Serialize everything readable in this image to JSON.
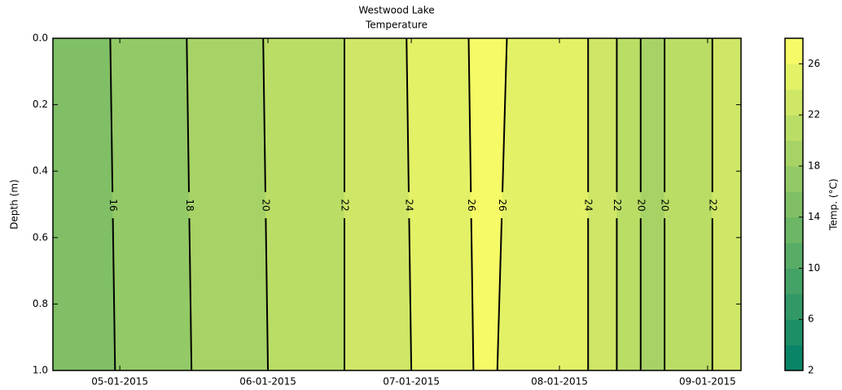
{
  "chart_data": {
    "type": "contour",
    "title": "Westwood Lake",
    "subtitle": "Temperature",
    "ylabel": "Depth (m)",
    "colorbar_label": "Temp. (°C)",
    "xlim": [
      "2015-04-17",
      "2015-09-08"
    ],
    "xticks": [
      {
        "value": "2015-05-01",
        "label": "05-01-2015"
      },
      {
        "value": "2015-06-01",
        "label": "06-01-2015"
      },
      {
        "value": "2015-07-01",
        "label": "07-01-2015"
      },
      {
        "value": "2015-08-01",
        "label": "08-01-2015"
      },
      {
        "value": "2015-09-01",
        "label": "09-01-2015"
      }
    ],
    "ylim": [
      0,
      1
    ],
    "y_inverted": true,
    "yticks": [
      {
        "value": 0,
        "label": "0.0"
      },
      0.2,
      0.4,
      0.6,
      0.8,
      {
        "value": 1,
        "label": "1.0"
      }
    ],
    "contours": [
      {
        "level": 16,
        "x_top": "2015-04-29",
        "x_bottom": "2015-04-30"
      },
      {
        "level": 18,
        "x_top": "2015-05-15",
        "x_bottom": "2015-05-16"
      },
      {
        "level": 20,
        "x_top": "2015-05-31",
        "x_bottom": "2015-06-01"
      },
      {
        "level": 22,
        "x_top": "2015-06-17",
        "x_bottom": "2015-06-17"
      },
      {
        "level": 24,
        "x_top": "2015-06-30",
        "x_bottom": "2015-07-01"
      },
      {
        "level": 26,
        "x_top": "2015-07-13",
        "x_bottom": "2015-07-14"
      },
      {
        "level": 26,
        "x_top": "2015-07-21",
        "x_bottom": "2015-07-19"
      },
      {
        "level": 24,
        "x_top": "2015-08-07",
        "x_bottom": "2015-08-07"
      },
      {
        "level": 22,
        "x_top": "2015-08-13",
        "x_bottom": "2015-08-13"
      },
      {
        "level": 20,
        "x_top": "2015-08-18",
        "x_bottom": "2015-08-18"
      },
      {
        "level": 20,
        "x_top": "2015-08-23",
        "x_bottom": "2015-08-23"
      },
      {
        "level": 22,
        "x_top": "2015-09-02",
        "x_bottom": "2015-09-02"
      }
    ],
    "region_colors": [
      "#80bf66",
      "#93c966",
      "#a7d366",
      "#badd66",
      "#cee766",
      "#e2f166",
      "#f5fa66",
      "#e2f166",
      "#cee766",
      "#badd66",
      "#a7d366",
      "#badd66",
      "#cee766"
    ],
    "colorbar_levels": [
      2,
      4,
      6,
      8,
      10,
      12,
      14,
      16,
      18,
      20,
      22,
      24,
      26,
      28
    ],
    "colorbar_colors": [
      "#0a8466",
      "#1d8e66",
      "#319866",
      "#45a266",
      "#58ac66",
      "#6cb666",
      "#80bf66",
      "#93c966",
      "#a7d366",
      "#badd66",
      "#cee766",
      "#e2f166",
      "#f5fa66"
    ],
    "colorbar_lim": [
      2,
      28
    ],
    "colorbar_ticks": [
      2,
      6,
      10,
      14,
      18,
      22,
      26
    ]
  }
}
